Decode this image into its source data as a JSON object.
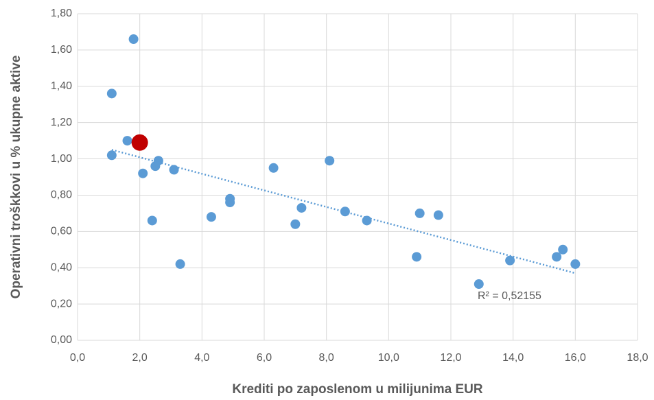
{
  "chart_data": {
    "type": "scatter",
    "x_label": "Krediti po zaposlenom u milijunima EUR",
    "y_label": "Operativni troškkovi u % ukupne aktive",
    "series": [
      {
        "color": "#5b9bd5",
        "x": [
          1.1,
          1.8,
          1.1,
          1.6,
          2.1,
          2.5,
          2.6,
          3.1,
          2.4,
          3.3,
          4.3,
          4.9,
          4.9,
          6.3,
          7.0,
          7.2,
          8.1,
          8.6,
          9.3,
          10.9,
          11.0,
          11.6,
          12.9,
          13.9,
          15.4,
          15.6,
          16.0
        ],
        "values": [
          1.36,
          1.66,
          1.02,
          1.1,
          0.92,
          0.96,
          0.99,
          0.94,
          0.66,
          0.42,
          0.68,
          0.78,
          0.76,
          0.95,
          0.64,
          0.73,
          0.99,
          0.71,
          0.66,
          0.46,
          0.7,
          0.69,
          0.31,
          0.44,
          0.46,
          0.5,
          0.42
        ]
      },
      {
        "color": "#c00000",
        "x": [
          2.0
        ],
        "values": [
          1.09
        ]
      }
    ],
    "trendline": {
      "color": "#5b9bd5",
      "x": [
        1.1,
        16.0
      ],
      "values": [
        1.05,
        0.37
      ]
    },
    "annotation": "R² = 0,52155",
    "xlim": [
      0,
      18
    ],
    "ylim": [
      0,
      1.8
    ],
    "xticks": [
      {
        "value": 0,
        "label": "0,0"
      },
      {
        "value": 2,
        "label": "2,0"
      },
      {
        "value": 4,
        "label": "4,0"
      },
      {
        "value": 6,
        "label": "6,0"
      },
      {
        "value": 8,
        "label": "8,0"
      },
      {
        "value": 10,
        "label": "10,0"
      },
      {
        "value": 12,
        "label": "12,0"
      },
      {
        "value": 14,
        "label": "14,0"
      },
      {
        "value": 16,
        "label": "16,0"
      },
      {
        "value": 18,
        "label": "18,0"
      }
    ],
    "yticks": [
      {
        "value": 0,
        "label": "0,00"
      },
      {
        "value": 0.2,
        "label": "0,20"
      },
      {
        "value": 0.4,
        "label": "0,40"
      },
      {
        "value": 0.6,
        "label": "0,60"
      },
      {
        "value": 0.8,
        "label": "0,80"
      },
      {
        "value": 1.0,
        "label": "1,00"
      },
      {
        "value": 1.2,
        "label": "1,20"
      },
      {
        "value": 1.4,
        "label": "1,40"
      },
      {
        "value": 1.6,
        "label": "1,60"
      },
      {
        "value": 1.8,
        "label": "1,80"
      }
    ],
    "grid": true
  }
}
